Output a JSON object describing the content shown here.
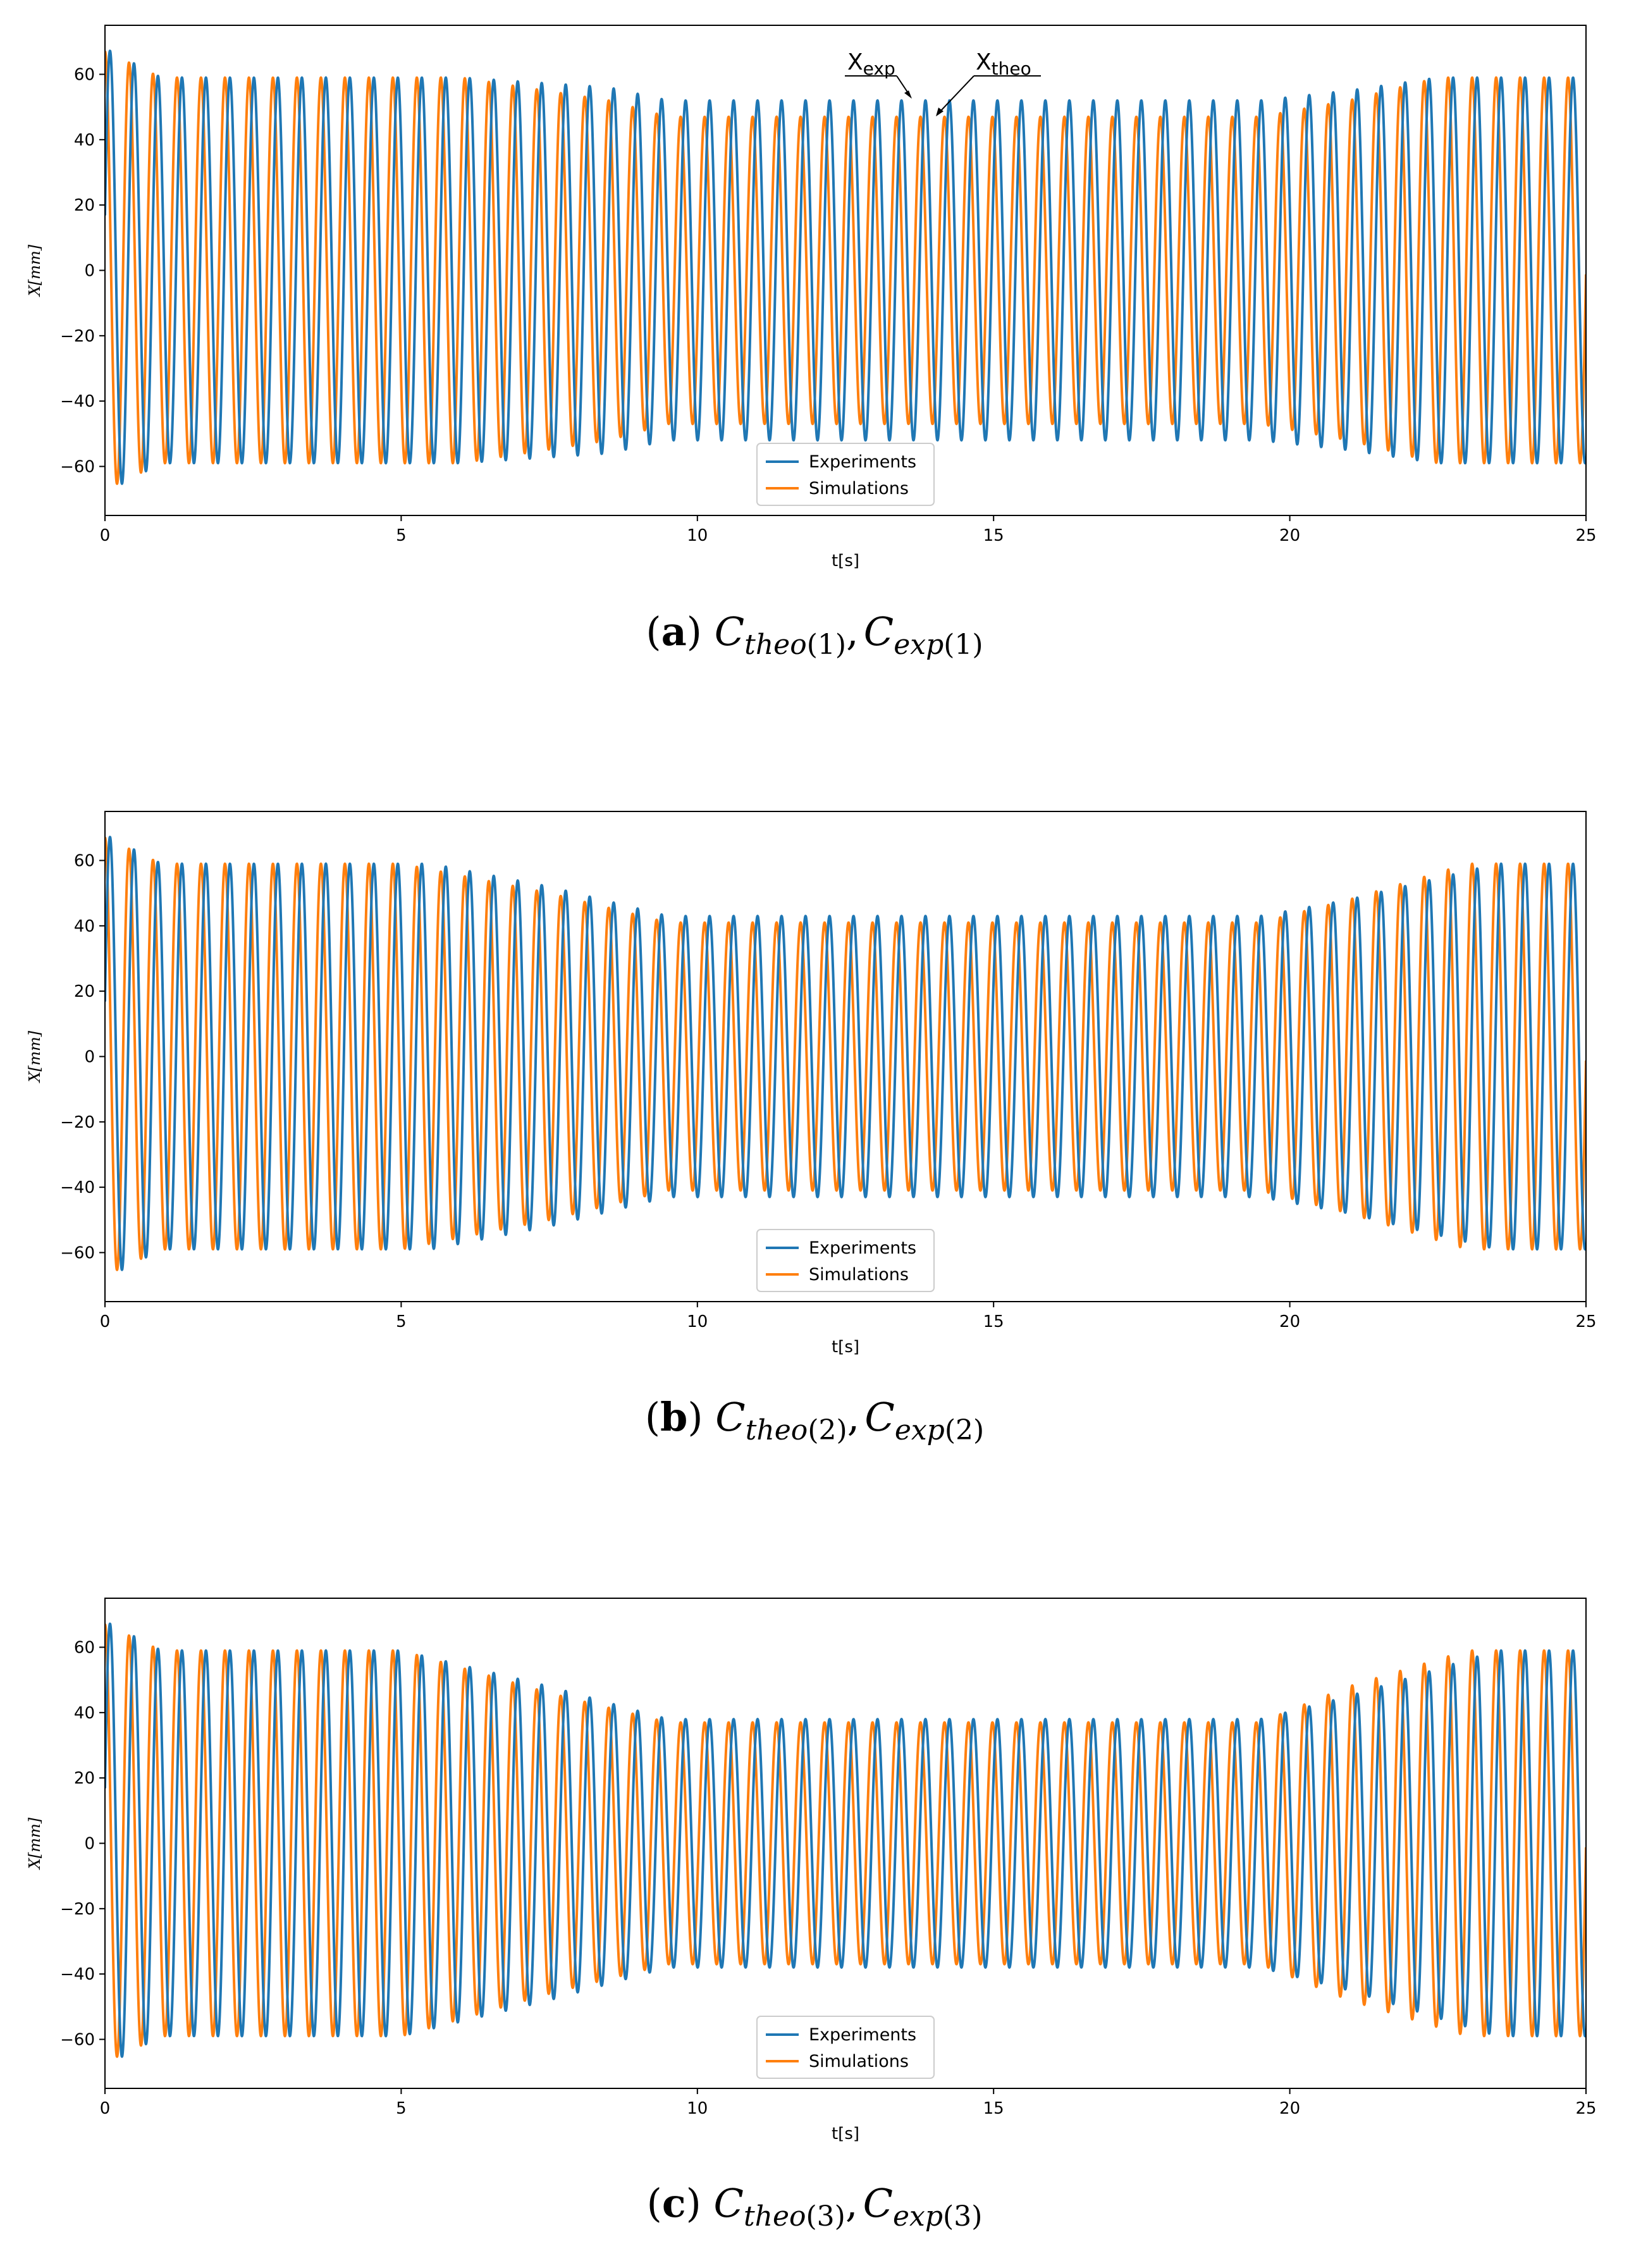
{
  "colors": {
    "experiments": "#1f77b4",
    "simulations": "#ff7f0e"
  },
  "chart_data": [
    {
      "type": "line",
      "panel_label": "a",
      "caption_text": "C_theo(1), C_exp(1)",
      "caption": {
        "label": "a",
        "c1": "C",
        "s1": "theo",
        "p1": "(1)",
        "sep": ",",
        "c2": "C",
        "s2": "exp",
        "p2": "(1)"
      },
      "xlabel": "t[s]",
      "ylabel": "X[mm]",
      "xlim": [
        0,
        25
      ],
      "ylim": [
        -75,
        75
      ],
      "xticks": [
        0,
        5,
        10,
        15,
        20,
        25
      ],
      "yticks": [
        -60,
        -40,
        -20,
        0,
        20,
        40,
        60
      ],
      "xtick_labels": [
        "0",
        "5",
        "10",
        "15",
        "20",
        "25"
      ],
      "ytick_labels": [
        "−60",
        "−40",
        "−20",
        "0",
        "20",
        "40",
        "60"
      ],
      "legend": [
        "Experiments",
        "Simulations"
      ],
      "legend_loc": "lower center",
      "annotations": [
        {
          "text": "X_exp",
          "base": "X",
          "sub": "exp"
        },
        {
          "text": "X_theo",
          "base": "X",
          "sub": "theo"
        }
      ],
      "signal": {
        "frequency_hz": 2.47,
        "experiments_envelope": {
          "t": [
            0,
            1.0,
            6.0,
            8.5,
            9.5,
            19.5,
            21.0,
            22.5,
            25
          ],
          "amplitude": [
            59,
            59,
            59,
            56,
            52,
            52,
            55,
            59,
            59
          ]
        },
        "simulations_envelope": {
          "t": [
            0,
            1.0,
            6.0,
            8.5,
            9.5,
            19.5,
            21.0,
            22.5,
            25
          ],
          "amplitude": [
            59,
            59,
            59,
            52,
            47,
            47,
            52,
            59,
            59
          ]
        },
        "initial_transient": {
          "experiments_peaks": [
            67,
            -68,
            66
          ],
          "simulations_peaks": [
            50,
            -67,
            55
          ]
        }
      }
    },
    {
      "type": "line",
      "panel_label": "b",
      "caption_text": "C_theo(2), C_exp(2)",
      "caption": {
        "label": "b",
        "c1": "C",
        "s1": "theo",
        "p1": "(2)",
        "sep": ",",
        "c2": "C",
        "s2": "exp",
        "p2": "(2)"
      },
      "xlabel": "t[s]",
      "ylabel": "X[mm]",
      "xlim": [
        0,
        25
      ],
      "ylim": [
        -75,
        75
      ],
      "xticks": [
        0,
        5,
        10,
        15,
        20,
        25
      ],
      "yticks": [
        -60,
        -40,
        -20,
        0,
        20,
        40,
        60
      ],
      "xtick_labels": [
        "0",
        "5",
        "10",
        "15",
        "20",
        "25"
      ],
      "ytick_labels": [
        "−60",
        "−40",
        "−20",
        "0",
        "20",
        "40",
        "60"
      ],
      "legend": [
        "Experiments",
        "Simulations"
      ],
      "legend_loc": "lower center",
      "signal": {
        "frequency_hz": 2.47,
        "experiments_envelope": {
          "t": [
            0,
            1.0,
            5.5,
            7.5,
            9.5,
            19.5,
            21.0,
            23.5,
            25
          ],
          "amplitude": [
            59,
            59,
            59,
            52,
            43,
            43,
            48,
            59,
            59
          ]
        },
        "simulations_envelope": {
          "t": [
            0,
            1.0,
            5.0,
            7.5,
            9.5,
            19.5,
            21.0,
            23.0,
            25
          ],
          "amplitude": [
            59,
            59,
            59,
            50,
            41,
            41,
            48,
            59,
            59
          ]
        },
        "initial_transient": {
          "experiments_peaks": [
            67,
            -68,
            66
          ],
          "simulations_peaks": [
            50,
            -67,
            55
          ]
        }
      }
    },
    {
      "type": "line",
      "panel_label": "c",
      "caption_text": "C_theo(3), C_exp(3)",
      "caption": {
        "label": "c",
        "c1": "C",
        "s1": "theo",
        "p1": "(3)",
        "sep": ",",
        "c2": "C",
        "s2": "exp",
        "p2": "(3)"
      },
      "xlabel": "t[s]",
      "ylabel": "X[mm]",
      "xlim": [
        0,
        25
      ],
      "ylim": [
        -75,
        75
      ],
      "xticks": [
        0,
        5,
        10,
        15,
        20,
        25
      ],
      "yticks": [
        -60,
        -40,
        -20,
        0,
        20,
        40,
        60
      ],
      "xtick_labels": [
        "0",
        "5",
        "10",
        "15",
        "20",
        "25"
      ],
      "ytick_labels": [
        "−60",
        "−40",
        "−20",
        "0",
        "20",
        "40",
        "60"
      ],
      "legend": [
        "Experiments",
        "Simulations"
      ],
      "legend_loc": "lower center",
      "signal": {
        "frequency_hz": 2.47,
        "experiments_envelope": {
          "t": [
            0,
            1.0,
            5.0,
            7.5,
            9.5,
            19.5,
            21.0,
            23.5,
            25
          ],
          "amplitude": [
            59,
            59,
            59,
            48,
            38,
            38,
            45,
            59,
            59
          ]
        },
        "simulations_envelope": {
          "t": [
            0,
            1.0,
            5.0,
            7.5,
            9.5,
            19.5,
            21.0,
            23.0,
            25
          ],
          "amplitude": [
            59,
            59,
            59,
            46,
            37,
            37,
            48,
            59,
            59
          ]
        },
        "initial_transient": {
          "experiments_peaks": [
            67,
            -68,
            66
          ],
          "simulations_peaks": [
            50,
            -67,
            55
          ]
        }
      }
    }
  ]
}
